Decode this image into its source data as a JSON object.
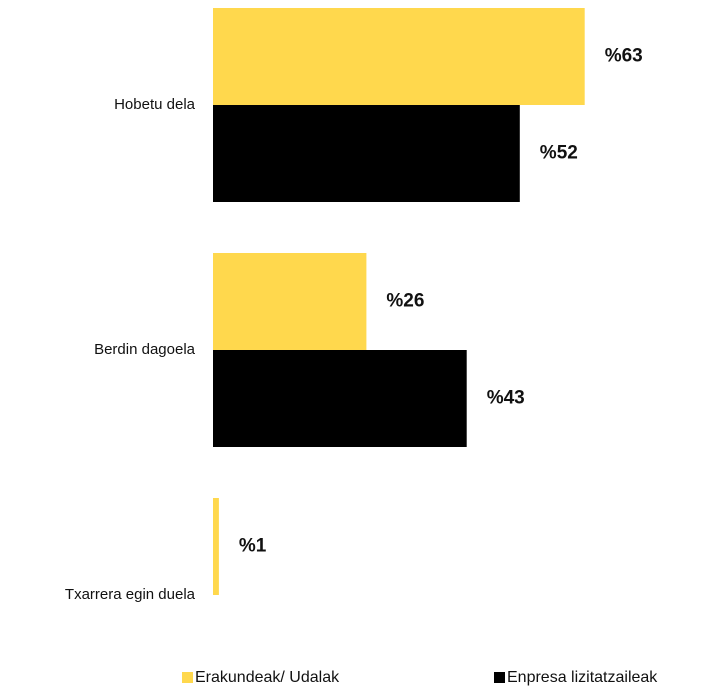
{
  "chart_data": {
    "type": "hbar",
    "categories": [
      "Hobetu dela",
      "Berdin dagoela",
      "Txarrera egin duela"
    ],
    "series": [
      {
        "name": "Erakundeak/ Udalak",
        "color": "#ffd84d",
        "values": [
          63,
          26,
          1
        ],
        "value_labels": [
          "%63",
          "%26",
          "%1"
        ]
      },
      {
        "name": "Enpresa lizitatzaileak",
        "color": "#000000",
        "values": [
          52,
          43,
          null
        ],
        "value_labels": [
          "%52",
          "%43",
          null
        ]
      }
    ],
    "legend": "bottom"
  }
}
